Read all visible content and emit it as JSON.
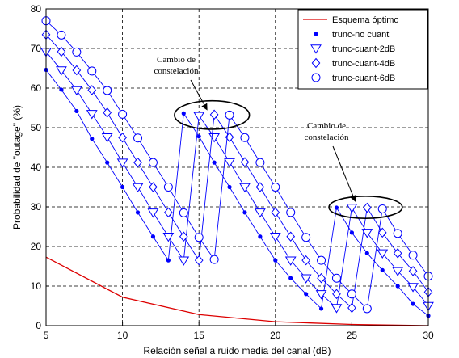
{
  "chart_data": {
    "type": "line",
    "title": "",
    "xlabel": "Relación señal a ruido media del canal (dB)",
    "ylabel": "Probabilidad de \"outage\" (%)",
    "xlim": [
      5,
      30
    ],
    "ylim": [
      0,
      80
    ],
    "xticks": [
      5,
      10,
      15,
      20,
      25,
      30
    ],
    "yticks": [
      0,
      10,
      20,
      30,
      40,
      50,
      60,
      70,
      80
    ],
    "grid": true,
    "legend_position": "top-right",
    "colors": {
      "optimal": "#dd0000",
      "markers": "#0000ff",
      "lines": "#0000ff",
      "annotation": "#000000"
    },
    "series": [
      {
        "name": "Esquema óptimo",
        "style": "line",
        "x": [
          5,
          10,
          15,
          20,
          25,
          30
        ],
        "y": [
          17.3,
          7.2,
          2.8,
          1.0,
          0.3,
          0.0
        ]
      },
      {
        "name": "trunc-no cuant",
        "style": "dot",
        "x": [
          5,
          6,
          7,
          8,
          9,
          10,
          11,
          12,
          13,
          14,
          15,
          16,
          17,
          18,
          19,
          20,
          21,
          22,
          23,
          24,
          25,
          26,
          27,
          28,
          29,
          30
        ],
        "y": [
          64.6,
          59.6,
          54.2,
          47.2,
          41.2,
          35.0,
          28.6,
          22.5,
          16.5,
          53.6,
          47.8,
          41.2,
          35.0,
          28.6,
          22.5,
          16.5,
          12.0,
          8.0,
          4.3,
          29.8,
          23.5,
          18.3,
          14.0,
          10.0,
          5.5,
          2.5
        ]
      },
      {
        "name": "trunc-cuant-2dB",
        "style": "triangle-down",
        "x": [
          5,
          6,
          7,
          8,
          9,
          10,
          11,
          12,
          13,
          14,
          15,
          16,
          17,
          18,
          19,
          20,
          21,
          22,
          23,
          24,
          25,
          26,
          27,
          28,
          29,
          30
        ],
        "y": [
          69.2,
          64.5,
          59.5,
          53.5,
          47.6,
          41.2,
          35.0,
          28.6,
          22.5,
          16.5,
          53.0,
          47.6,
          41.3,
          35.0,
          28.6,
          22.5,
          16.5,
          12.0,
          8.0,
          4.5,
          29.8,
          23.5,
          18.3,
          13.8,
          9.8,
          5.0
        ]
      },
      {
        "name": "trunc-cuant-4dB",
        "style": "diamond",
        "x": [
          5,
          6,
          7,
          8,
          9,
          10,
          11,
          12,
          13,
          14,
          15,
          16,
          17,
          18,
          19,
          20,
          21,
          22,
          23,
          24,
          25,
          26,
          27,
          28,
          29,
          30
        ],
        "y": [
          73.5,
          69.2,
          64.5,
          59.5,
          53.8,
          47.5,
          41.2,
          35.0,
          28.6,
          22.5,
          16.5,
          53.3,
          47.6,
          41.3,
          35.0,
          28.6,
          22.5,
          16.5,
          12.0,
          8.0,
          4.5,
          29.8,
          23.5,
          18.3,
          13.8,
          8.5
        ]
      },
      {
        "name": "trunc-cuant-6dB",
        "style": "circle",
        "x": [
          5,
          6,
          7,
          8,
          9,
          10,
          11,
          12,
          13,
          14,
          15,
          16,
          17,
          18,
          19,
          20,
          21,
          22,
          23,
          24,
          25,
          26,
          27,
          28,
          29,
          30
        ],
        "y": [
          77.0,
          73.4,
          69.1,
          64.3,
          59.4,
          53.4,
          47.4,
          41.2,
          35.0,
          28.5,
          22.3,
          16.7,
          53.2,
          47.5,
          41.2,
          35.0,
          28.6,
          22.3,
          16.5,
          12.0,
          8.0,
          4.3,
          29.5,
          23.3,
          17.8,
          12.5
        ]
      }
    ],
    "annotations": [
      {
        "lines": [
          "Cambio de",
          "constelación"
        ],
        "target": [
          15.5,
          53.3
        ],
        "ellipse_x": [
          13.4,
          18.3
        ],
        "ellipse_y": [
          49.6,
          56.8
        ]
      },
      {
        "lines": [
          "Cambio de",
          "constelación"
        ],
        "target": [
          25.2,
          30.2
        ],
        "ellipse_x": [
          23.5,
          28.3
        ],
        "ellipse_y": [
          27.1,
          32.7
        ]
      }
    ]
  }
}
